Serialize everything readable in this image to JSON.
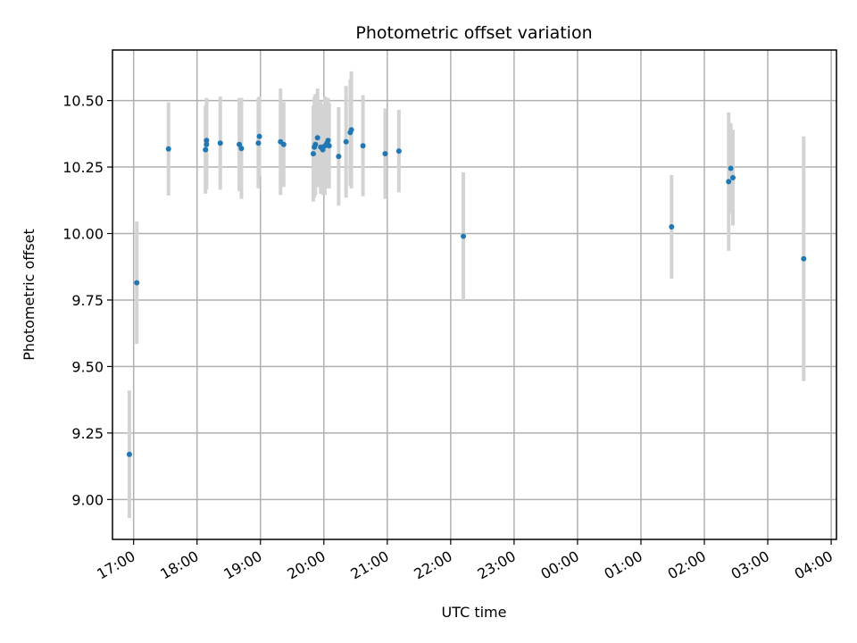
{
  "chart_data": {
    "type": "scatter",
    "title": "Photometric offset variation",
    "xlabel": "UTC time",
    "ylabel": "Photometric offset",
    "x_tick_labels": [
      "17:00",
      "18:00",
      "19:00",
      "20:00",
      "21:00",
      "22:00",
      "23:00",
      "00:00",
      "01:00",
      "02:00",
      "03:00",
      "04:00"
    ],
    "y_tick_labels": [
      "9.00",
      "9.25",
      "9.50",
      "9.75",
      "10.00",
      "10.25",
      "10.50"
    ],
    "y_ticks": [
      9.0,
      9.25,
      9.5,
      9.75,
      10.0,
      10.25,
      10.5
    ],
    "xlim": [
      "16:40",
      "04:05"
    ],
    "ylim": [
      8.85,
      10.69
    ],
    "grid": true,
    "colors": {
      "point": "#1f77b4",
      "errorbar": "#d3d3d3",
      "grid": "#b0b0b0"
    },
    "points": [
      {
        "x": "16:56",
        "y": 9.17,
        "err": 0.24
      },
      {
        "x": "17:03",
        "y": 9.815,
        "err": 0.23
      },
      {
        "x": "17:33",
        "y": 10.318,
        "err": 0.175
      },
      {
        "x": "18:08",
        "y": 10.315,
        "err": 0.165
      },
      {
        "x": "18:09",
        "y": 10.335,
        "err": 0.17
      },
      {
        "x": "18:09",
        "y": 10.35,
        "err": 0.16
      },
      {
        "x": "18:22",
        "y": 10.34,
        "err": 0.175
      },
      {
        "x": "18:40",
        "y": 10.335,
        "err": 0.175
      },
      {
        "x": "18:42",
        "y": 10.32,
        "err": 0.19
      },
      {
        "x": "18:58",
        "y": 10.34,
        "err": 0.17
      },
      {
        "x": "18:59",
        "y": 10.365,
        "err": 0.15
      },
      {
        "x": "19:19",
        "y": 10.345,
        "err": 0.2
      },
      {
        "x": "19:22",
        "y": 10.335,
        "err": 0.16
      },
      {
        "x": "19:50",
        "y": 10.3,
        "err": 0.18
      },
      {
        "x": "19:51",
        "y": 10.325,
        "err": 0.19
      },
      {
        "x": "19:52",
        "y": 10.335,
        "err": 0.19
      },
      {
        "x": "19:54",
        "y": 10.36,
        "err": 0.185
      },
      {
        "x": "19:57",
        "y": 10.325,
        "err": 0.175
      },
      {
        "x": "19:59",
        "y": 10.315,
        "err": 0.17
      },
      {
        "x": "20:01",
        "y": 10.33,
        "err": 0.185
      },
      {
        "x": "20:03",
        "y": 10.34,
        "err": 0.17
      },
      {
        "x": "20:04",
        "y": 10.35,
        "err": 0.16
      },
      {
        "x": "20:05",
        "y": 10.33,
        "err": 0.16
      },
      {
        "x": "20:14",
        "y": 10.29,
        "err": 0.185
      },
      {
        "x": "20:21",
        "y": 10.345,
        "err": 0.21
      },
      {
        "x": "20:25",
        "y": 10.38,
        "err": 0.2
      },
      {
        "x": "20:26",
        "y": 10.39,
        "err": 0.22
      },
      {
        "x": "20:37",
        "y": 10.33,
        "err": 0.19
      },
      {
        "x": "20:58",
        "y": 10.3,
        "err": 0.17
      },
      {
        "x": "21:11",
        "y": 10.31,
        "err": 0.155
      },
      {
        "x": "22:12",
        "y": 9.99,
        "err": 0.24
      },
      {
        "x": "01:29",
        "y": 10.025,
        "err": 0.195
      },
      {
        "x": "02:23",
        "y": 10.195,
        "err": 0.26
      },
      {
        "x": "02:25",
        "y": 10.245,
        "err": 0.17
      },
      {
        "x": "02:27",
        "y": 10.21,
        "err": 0.18
      },
      {
        "x": "03:34",
        "y": 9.905,
        "err": 0.46
      }
    ]
  }
}
